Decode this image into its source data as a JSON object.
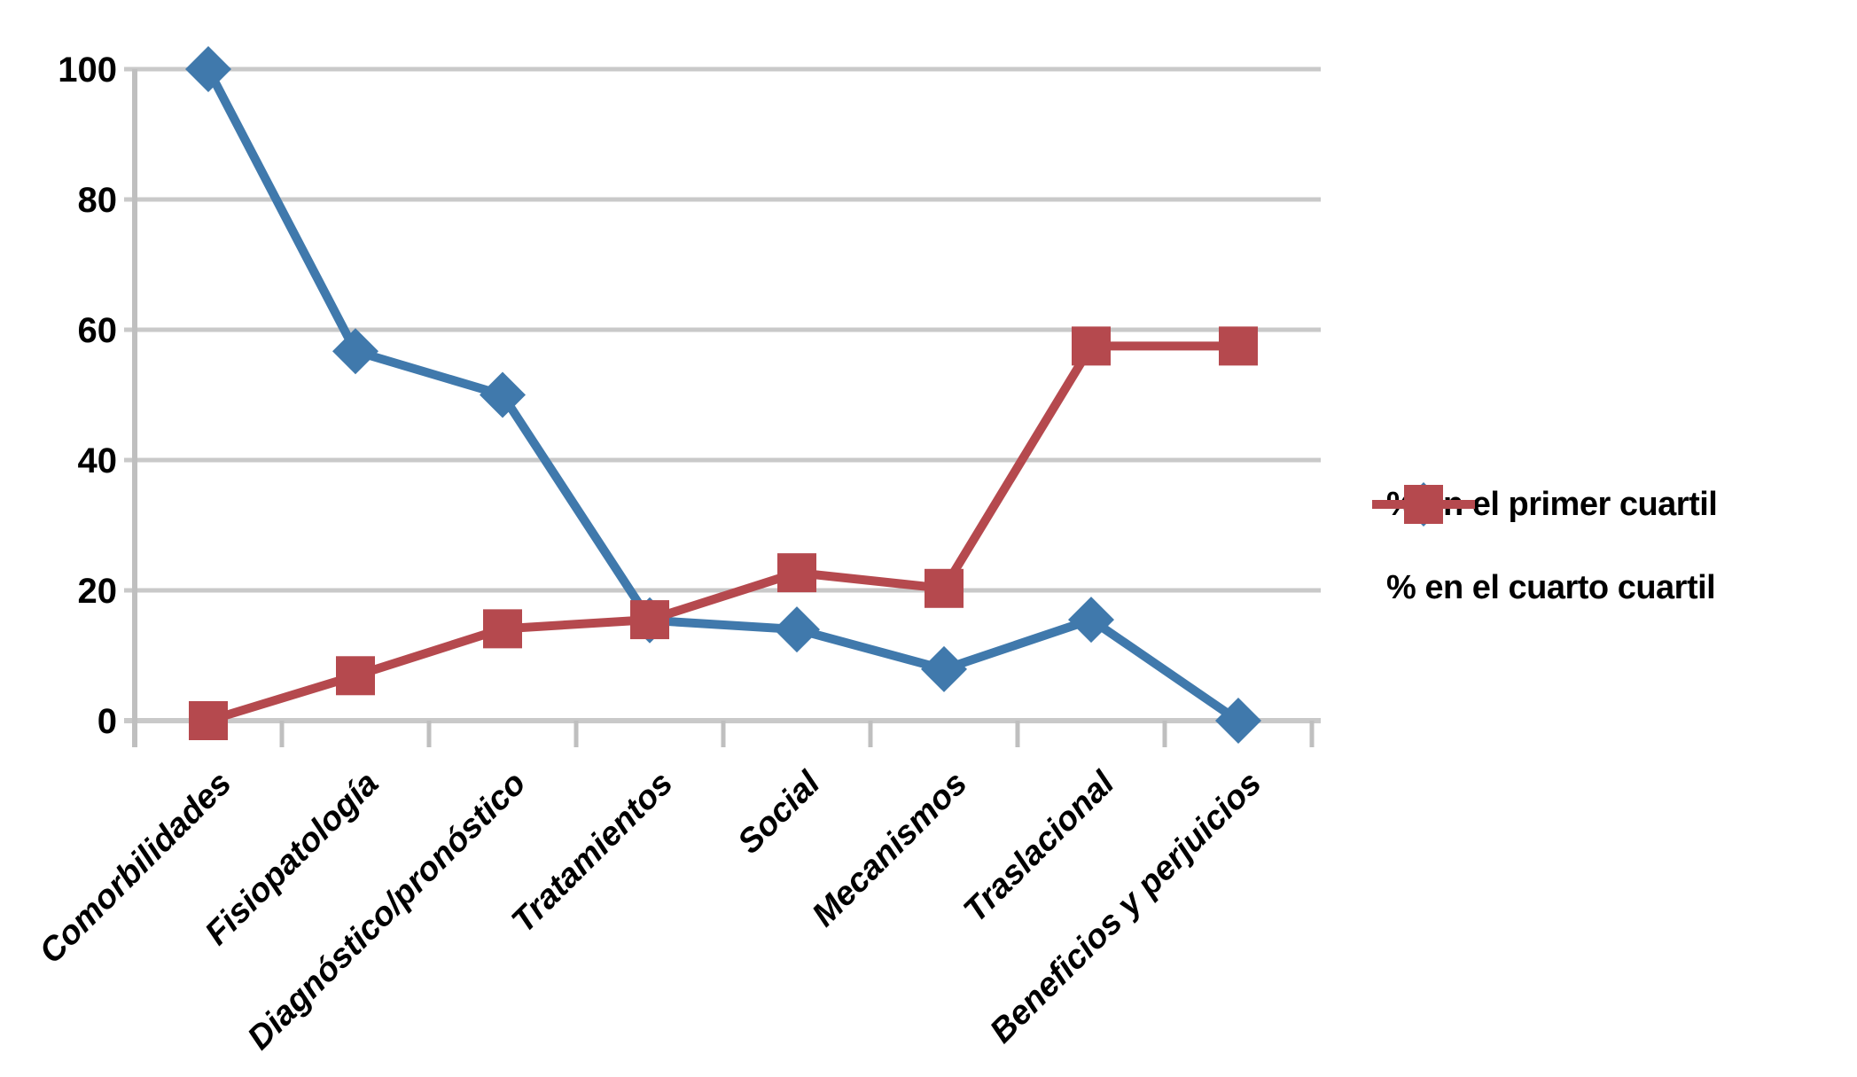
{
  "chart_data": {
    "type": "line",
    "categories": [
      "Comorbilidades",
      "Fisiopatología",
      "Diagnóstico/pronóstico",
      "Tratamientos",
      "Social",
      "Mecanismos",
      "Traslacional",
      "Beneficios y perjuicios"
    ],
    "series": [
      {
        "name": "% en el primer cuartil",
        "marker": "diamond",
        "color": "#4079AC",
        "values": [
          100,
          56.7,
          50,
          15.4,
          14,
          7.9,
          15.5,
          0
        ]
      },
      {
        "name": "% en el cuarto cuartil",
        "marker": "square",
        "color": "#B5494E",
        "values": [
          0,
          6.9,
          14.1,
          15.5,
          22.7,
          20.3,
          57.5,
          57.5
        ]
      }
    ],
    "ylim": [
      0,
      100
    ],
    "yticks": [
      0,
      20,
      40,
      60,
      80,
      100
    ],
    "ytick_labels": [
      "0",
      "20",
      "40",
      "60",
      "80",
      "100"
    ],
    "grid": "horizontal-on",
    "legend_position": "right-middle",
    "title": "",
    "xlabel": "",
    "ylabel": ""
  },
  "colors": {
    "grid": "#C9C9C9",
    "axis": "#BFBFBF",
    "label_text": "#000000",
    "background": "#FFFFFF"
  }
}
